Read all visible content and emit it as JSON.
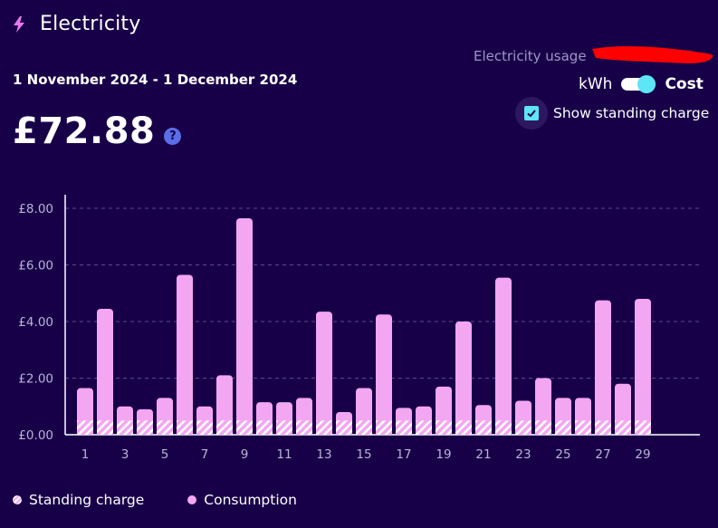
{
  "header": {
    "icon": "lightning-bolt-icon",
    "title": "Electricity",
    "usage_link": "Electricity usage"
  },
  "period": {
    "date_range": "1 November 2024 - 1 December 2024",
    "total": "£72.88",
    "help_glyph": "?"
  },
  "controls": {
    "unit_left": "kWh",
    "unit_right": "Cost",
    "unit_toggle_on": true,
    "standing_charge_label": "Show standing charge",
    "standing_charge_checked": true
  },
  "colors": {
    "background": "#180048",
    "bar": "#f3a6f2",
    "toggle_knob": "#5de6f5",
    "redaction": "#ff0000"
  },
  "chart_data": {
    "type": "bar",
    "stacked": true,
    "categories": [
      "1",
      "2",
      "3",
      "4",
      "5",
      "6",
      "7",
      "8",
      "9",
      "10",
      "11",
      "12",
      "13",
      "14",
      "15",
      "16",
      "17",
      "18",
      "19",
      "20",
      "21",
      "22",
      "23",
      "24",
      "25",
      "26",
      "27",
      "28",
      "29"
    ],
    "x_tick_labels": [
      "1",
      "3",
      "5",
      "7",
      "9",
      "11",
      "13",
      "15",
      "17",
      "19",
      "21",
      "23",
      "25",
      "27",
      "29"
    ],
    "y_tick_labels": [
      "£0.00",
      "£2.00",
      "£4.00",
      "£6.00",
      "£8.00"
    ],
    "ylim": [
      0,
      8
    ],
    "grid": true,
    "legend_position": "bottom-left",
    "series": [
      {
        "name": "Standing charge",
        "values": [
          0.5,
          0.5,
          0.5,
          0.5,
          0.5,
          0.5,
          0.5,
          0.5,
          0.5,
          0.5,
          0.5,
          0.5,
          0.5,
          0.5,
          0.5,
          0.5,
          0.5,
          0.5,
          0.5,
          0.5,
          0.5,
          0.5,
          0.5,
          0.5,
          0.5,
          0.5,
          0.5,
          0.5,
          0.5
        ]
      },
      {
        "name": "Consumption",
        "values": [
          1.15,
          3.95,
          0.5,
          0.4,
          0.8,
          5.15,
          0.5,
          1.6,
          7.15,
          0.65,
          0.65,
          0.8,
          3.85,
          0.3,
          1.15,
          3.75,
          0.45,
          0.5,
          1.2,
          3.5,
          0.55,
          5.05,
          0.7,
          1.5,
          0.8,
          0.8,
          4.25,
          1.3,
          4.3
        ]
      }
    ]
  },
  "legend": {
    "standing": "Standing charge",
    "consumption": "Consumption"
  }
}
